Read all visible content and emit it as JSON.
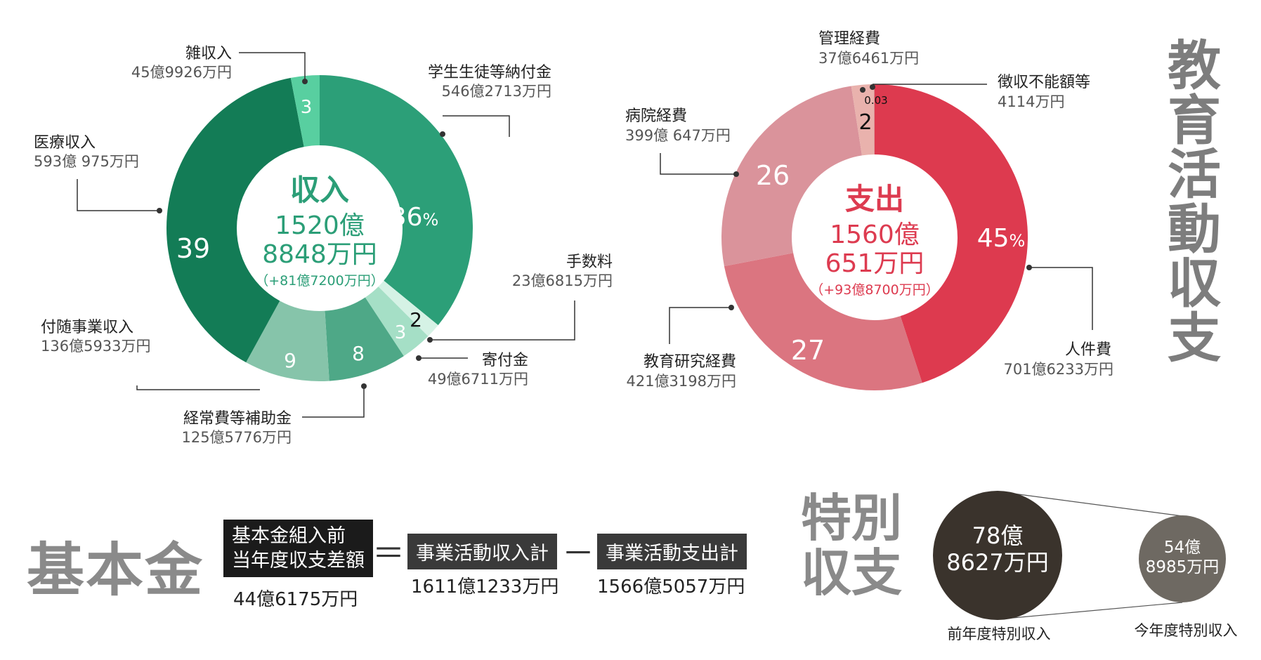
{
  "colors": {
    "income": "#2b9e77",
    "expense": "#dd3b50",
    "prev_circle": "#3a332c",
    "curr_circle": "#6e6962",
    "heading_grey": "#8a8a8a"
  },
  "side_title": [
    "教",
    "育",
    "活",
    "動",
    "収",
    "支"
  ],
  "chart_data": [
    {
      "type": "pie",
      "donut": true,
      "center_title": "収入",
      "center_amount_line1": "1520億",
      "center_amount_line2": "8848万円",
      "center_change": "（+81億7200万円）",
      "slices": [
        {
          "name": "学生生徒等納付金",
          "amount": "546億2713万円",
          "value": 546.2713,
          "pct_label": "36",
          "pct_suffix": "%",
          "color": "#2c9f78"
        },
        {
          "name": "手数料",
          "amount": "23億6815万円",
          "value": 23.6815,
          "pct_label": "2",
          "color": "#d5f2e5"
        },
        {
          "name": "寄付金",
          "amount": "49億6711万円",
          "value": 49.6711,
          "pct_label": "3",
          "color": "#a5dfc6"
        },
        {
          "name": "経常費等補助金",
          "amount": "125億5776万円",
          "value": 125.5776,
          "pct_label": "8",
          "color": "#4ea887"
        },
        {
          "name": "付随事業収入",
          "amount": "136億5933万円",
          "value": 136.5933,
          "pct_label": "9",
          "color": "#86c4aa"
        },
        {
          "name": "医療収入",
          "amount": "593億 975万円",
          "value": 593.0975,
          "pct_label": "39",
          "color": "#137c56"
        },
        {
          "name": "雑収入",
          "amount": "45億9926万円",
          "value": 45.9926,
          "pct_label": "3",
          "color": "#58cfa0"
        }
      ]
    },
    {
      "type": "pie",
      "donut": true,
      "center_title": "支出",
      "center_amount_line1": "1560億",
      "center_amount_line2": "651万円",
      "center_change": "（+93億8700万円）",
      "slices": [
        {
          "name": "人件費",
          "amount": "701億6233万円",
          "value": 701.6233,
          "pct_label": "45",
          "pct_suffix": "%",
          "color": "#dd3a4f"
        },
        {
          "name": "教育研究経費",
          "amount": "421億3198万円",
          "value": 421.3198,
          "pct_label": "27",
          "color": "#db7580"
        },
        {
          "name": "病院経費",
          "amount": "399億 647万円",
          "value": 399.0647,
          "pct_label": "26",
          "color": "#da939b"
        },
        {
          "name": "管理経費",
          "amount": "37億6461万円",
          "value": 37.6461,
          "pct_label": "2",
          "color": "#e9b2ad"
        },
        {
          "name": "徴収不能額等",
          "amount": "4114万円",
          "value": 0.4114,
          "pct_label": "0.03",
          "color": "#b11e30"
        }
      ]
    }
  ],
  "fund": {
    "title": "基本金",
    "box1_line1": "基本金組入前",
    "box1_line2": "当年度収支差額",
    "box1_amount": "44億6175万円",
    "eq": "＝",
    "box2": "事業活動収入計",
    "box2_amount": "1611億1233万円",
    "minus": "－",
    "box3": "事業活動支出計",
    "box3_amount": "1566億5057万円"
  },
  "special": {
    "title_line1": "特別",
    "title_line2": "収支",
    "prev_line1": "78億",
    "prev_line2": "8627万円",
    "prev_value": 78.8627,
    "prev_caption": "前年度特別収入",
    "curr_line1": "54億",
    "curr_line2": "8985万円",
    "curr_value": 54.8985,
    "curr_caption": "今年度特別収入"
  }
}
